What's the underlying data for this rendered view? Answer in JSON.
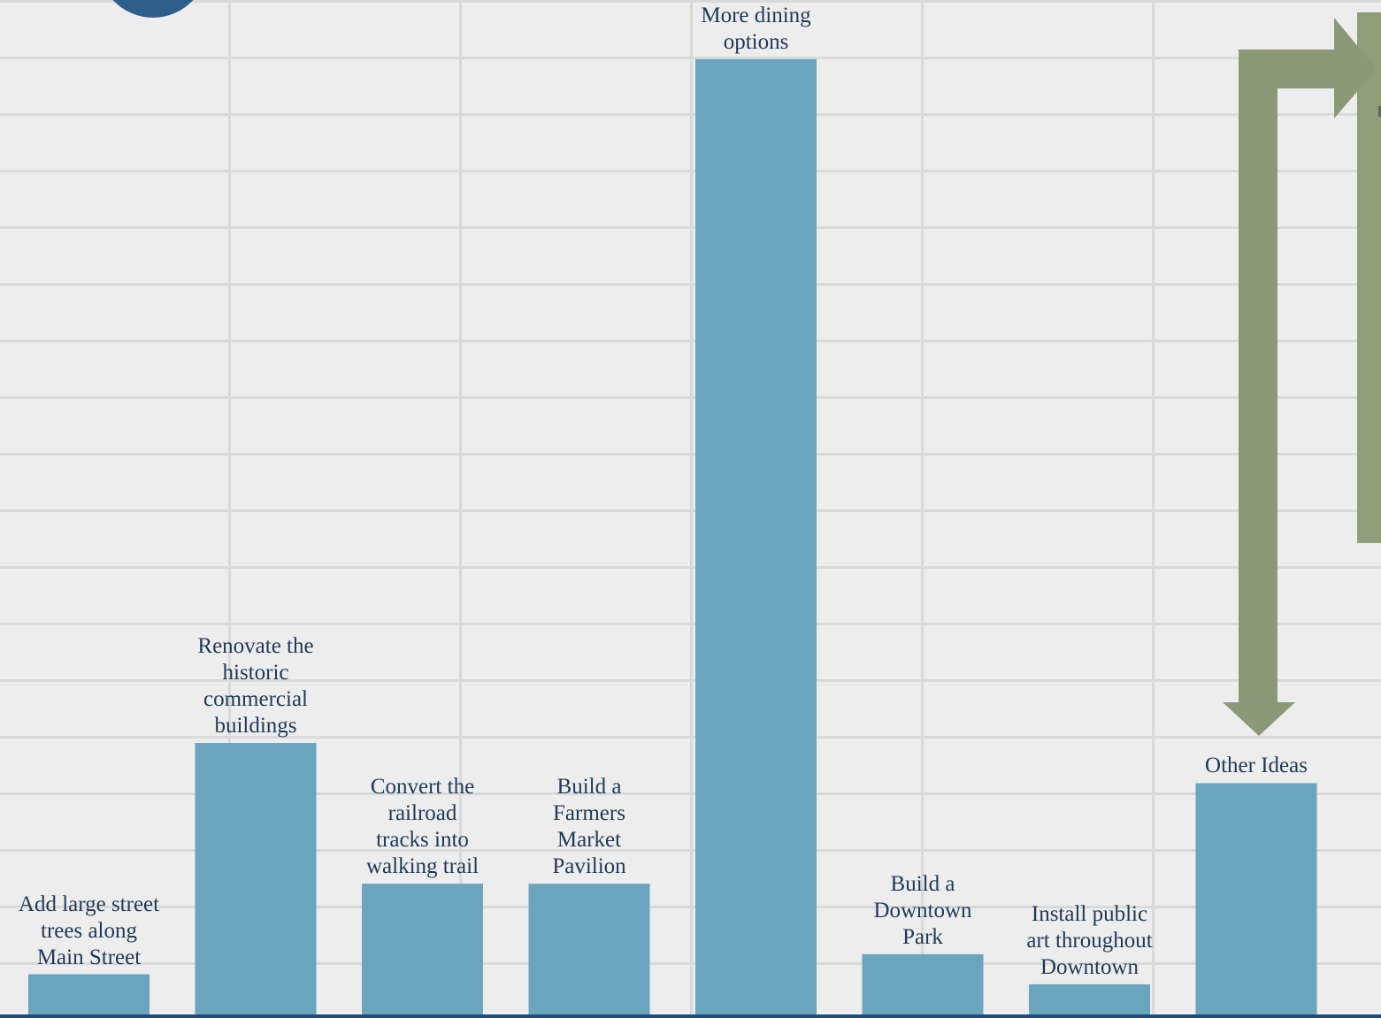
{
  "chart_data": {
    "type": "bar",
    "categories": [
      "Add large street trees along Main Street",
      "Renovate the historic commercial buildings",
      "Convert the railroad tracks into walking trail",
      "Build a Farmers Market Pavilion",
      "More dining options",
      "Build a Downtown Park",
      "Install public art throughout Downtown",
      "Other Ideas"
    ],
    "labels": [
      [
        "Add large street",
        "trees along",
        "Main Street"
      ],
      [
        "Renovate the",
        "historic",
        "commercial",
        "buildings"
      ],
      [
        "Convert the",
        "railroad",
        "tracks into",
        "walking trail"
      ],
      [
        "Build a",
        "Farmers",
        "Market",
        "Pavilion"
      ],
      [
        "More dining",
        "options"
      ],
      [
        "Build a",
        "Downtown",
        "Park"
      ],
      [
        "Install public",
        "art throughout",
        "Downtown"
      ],
      [
        "Other Ideas"
      ]
    ],
    "values": [
      4,
      27,
      13,
      13,
      95,
      6,
      3,
      23
    ],
    "ylim": [
      0,
      100
    ],
    "bar_color": "#6aa4bd",
    "axis_color": "#1e4e78",
    "label_color": "#1e3a58",
    "grid": false,
    "legend": "none"
  },
  "decor": {
    "badge_color": "#2e5f8a",
    "arrow_color": "#8a9a78",
    "arrow_icon": "elbow-arrow-icon"
  }
}
